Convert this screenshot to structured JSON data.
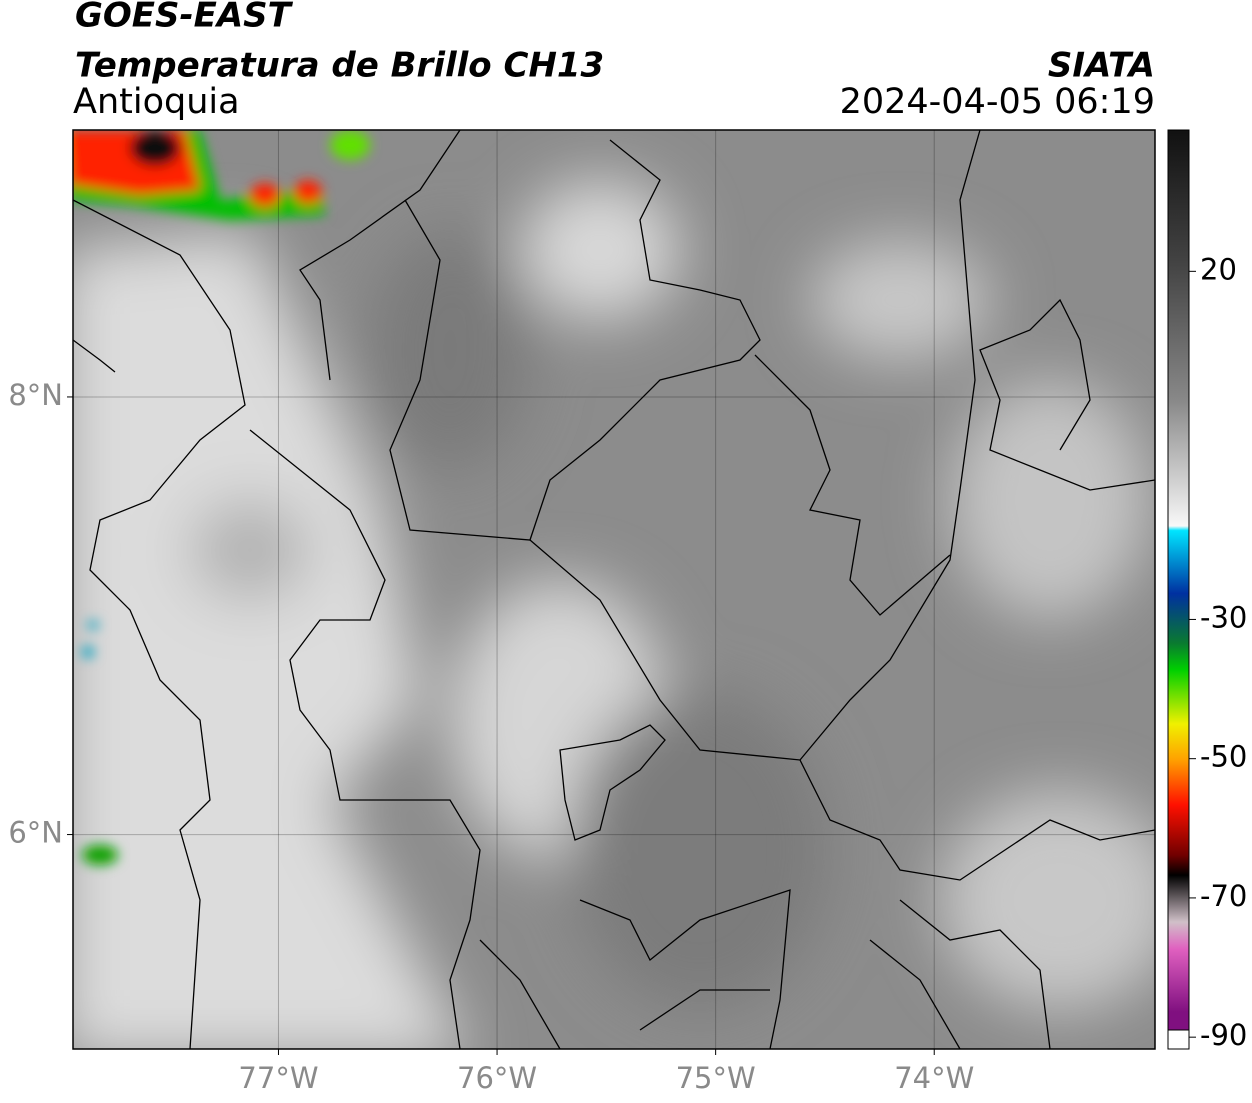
{
  "header": {
    "satellite": "GOES-EAST",
    "product": "Temperatura de Brillo CH13",
    "region": "Antioquia",
    "organization": "SIATA",
    "timestamp": "2024-04-05 06:19"
  },
  "map": {
    "xlim": [
      -77.94,
      -72.99
    ],
    "ylim": [
      5.02,
      9.22
    ],
    "xticks": [
      {
        "value": -77,
        "label": "77°W"
      },
      {
        "value": -76,
        "label": "76°W"
      },
      {
        "value": -75,
        "label": "75°W"
      },
      {
        "value": -74,
        "label": "74°W"
      }
    ],
    "yticks": [
      {
        "value": 6,
        "label": "6°N"
      },
      {
        "value": 8,
        "label": "8°N"
      }
    ],
    "grid": true
  },
  "colorbar": {
    "clim": [
      -91.7,
      40.3
    ],
    "ticks": [
      -90,
      -70,
      -50,
      -30,
      20
    ]
  }
}
